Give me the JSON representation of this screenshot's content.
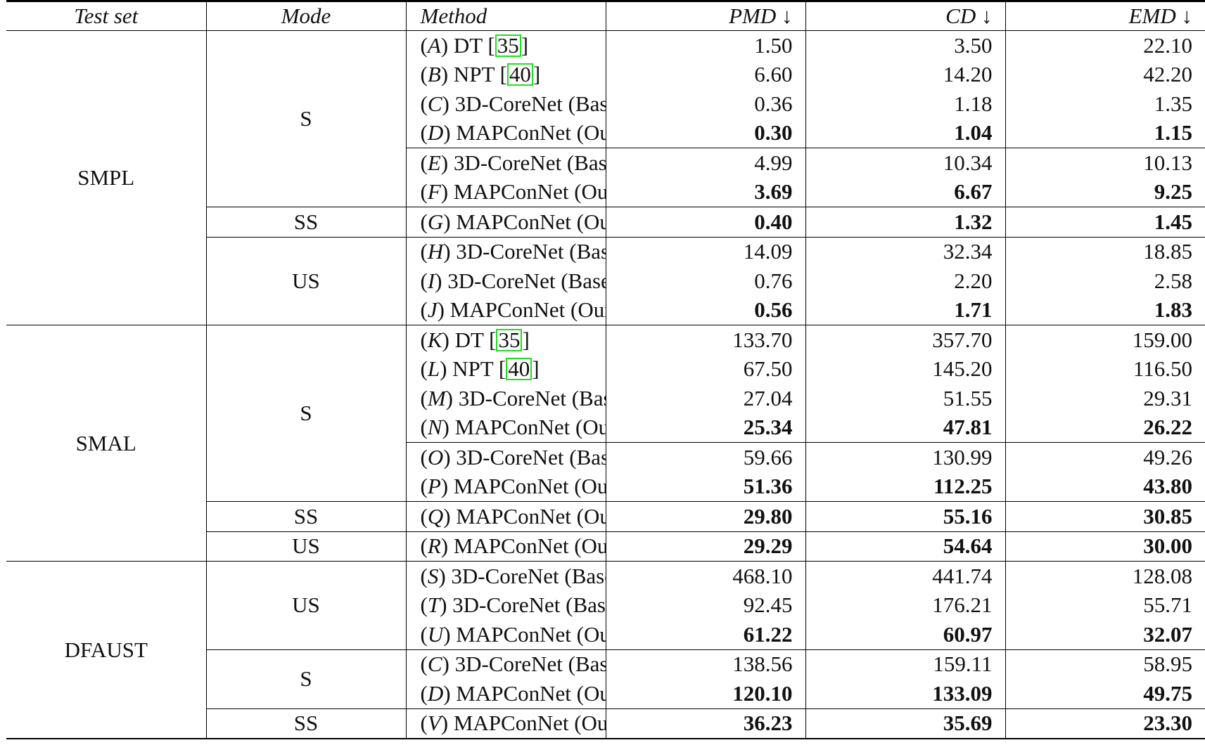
{
  "table": {
    "header": [
      "Test set",
      "Mode",
      "Method",
      "PMD ↓",
      "CD ↓",
      "EMD ↓"
    ],
    "groups": [
      {
        "test_set": "SMPL",
        "modes": [
          {
            "mode": "S",
            "blocks": [
              [
                {
                  "method": [
                    {
                      "text": "("
                    },
                    {
                      "text": "A",
                      "style": "italic"
                    },
                    {
                      "text": ") DT ["
                    },
                    {
                      "text": "35",
                      "style": "cite"
                    },
                    {
                      "text": "]"
                    }
                  ],
                  "pmd": "1.50",
                  "cd": "3.50",
                  "emd": "22.10"
                },
                {
                  "method": [
                    {
                      "text": "("
                    },
                    {
                      "text": "B",
                      "style": "italic"
                    },
                    {
                      "text": ") NPT ["
                    },
                    {
                      "text": "40",
                      "style": "cite"
                    },
                    {
                      "text": "]"
                    }
                  ],
                  "pmd": "6.60",
                  "cd": "14.20",
                  "emd": "42.20"
                },
                {
                  "method": [
                    {
                      "text": "("
                    },
                    {
                      "text": "C",
                      "style": "italic"
                    },
                    {
                      "text": ") 3D-CoreNet (Baseline) ["
                    },
                    {
                      "text": "33",
                      "style": "cite"
                    },
                    {
                      "text": "]"
                    }
                  ],
                  "pmd": "0.36",
                  "cd": "1.18",
                  "emd": "1.35"
                },
                {
                  "method": [
                    {
                      "text": "("
                    },
                    {
                      "text": "D",
                      "style": "italic"
                    },
                    {
                      "text": ") MAPConNet (Ours)"
                    }
                  ],
                  "pmd": "0.30",
                  "cd": "1.04",
                  "emd": "1.15",
                  "bold": true
                }
              ],
              [
                {
                  "method": [
                    {
                      "text": "("
                    },
                    {
                      "text": "E",
                      "style": "italic"
                    },
                    {
                      "text": ") 3D-CoreNet (Baseline) ["
                    },
                    {
                      "text": "33",
                      "style": "cite"
                    },
                    {
                      "text": "], 50% labelled"
                    }
                  ],
                  "pmd": "4.99",
                  "cd": "10.34",
                  "emd": "10.13"
                },
                {
                  "method": [
                    {
                      "text": "("
                    },
                    {
                      "text": "F",
                      "style": "italic"
                    },
                    {
                      "text": ") MAPConNet (Ours), 50% labelled"
                    }
                  ],
                  "pmd": "3.69",
                  "cd": "6.67",
                  "emd": "9.25",
                  "bold": true
                }
              ]
            ]
          },
          {
            "mode": "SS",
            "blocks": [
              [
                {
                  "method": [
                    {
                      "text": "("
                    },
                    {
                      "text": "G",
                      "style": "italic"
                    },
                    {
                      "text": ") MAPConNet (Ours), 50% labelled + 50% unlabelled"
                    }
                  ],
                  "pmd": "0.40",
                  "cd": "1.32",
                  "emd": "1.45",
                  "bold": true
                }
              ]
            ]
          },
          {
            "mode": "US",
            "blocks": [
              [
                {
                  "method": [
                    {
                      "text": "("
                    },
                    {
                      "text": "H",
                      "style": "italic"
                    },
                    {
                      "text": ") 3D-CoreNet (Baseline) ["
                    },
                    {
                      "text": "33",
                      "style": "cite"
                    },
                    {
                      "text": "], without LD"
                    }
                  ],
                  "pmd": "14.09",
                  "cd": "32.34",
                  "emd": "18.85"
                },
                {
                  "method": [
                    {
                      "text": "("
                    },
                    {
                      "text": "I",
                      "style": "italic"
                    },
                    {
                      "text": ") 3D-CoreNet (Baseline) ["
                    },
                    {
                      "text": "33",
                      "style": "cite"
                    },
                    {
                      "text": "], with LD"
                    }
                  ],
                  "pmd": "0.76",
                  "cd": "2.20",
                  "emd": "2.58"
                },
                {
                  "method": [
                    {
                      "text": "("
                    },
                    {
                      "text": "J",
                      "style": "italic"
                    },
                    {
                      "text": ") MAPConNet (Ours)"
                    }
                  ],
                  "pmd": "0.56",
                  "cd": "1.71",
                  "emd": "1.83",
                  "bold": true
                }
              ]
            ]
          }
        ]
      },
      {
        "test_set": "SMAL",
        "modes": [
          {
            "mode": "S",
            "blocks": [
              [
                {
                  "method": [
                    {
                      "text": "("
                    },
                    {
                      "text": "K",
                      "style": "italic"
                    },
                    {
                      "text": ") DT ["
                    },
                    {
                      "text": "35",
                      "style": "cite"
                    },
                    {
                      "text": "]"
                    }
                  ],
                  "pmd": "133.70",
                  "cd": "357.70",
                  "emd": "159.00"
                },
                {
                  "method": [
                    {
                      "text": "("
                    },
                    {
                      "text": "L",
                      "style": "italic"
                    },
                    {
                      "text": ") NPT ["
                    },
                    {
                      "text": "40",
                      "style": "cite"
                    },
                    {
                      "text": "]"
                    }
                  ],
                  "pmd": "67.50",
                  "cd": "145.20",
                  "emd": "116.50"
                },
                {
                  "method": [
                    {
                      "text": "("
                    },
                    {
                      "text": "M",
                      "style": "italic"
                    },
                    {
                      "text": ") 3D-CoreNet (Baseline) ["
                    },
                    {
                      "text": "33",
                      "style": "cite"
                    },
                    {
                      "text": "]"
                    }
                  ],
                  "pmd": "27.04",
                  "cd": "51.55",
                  "emd": "29.31"
                },
                {
                  "method": [
                    {
                      "text": "("
                    },
                    {
                      "text": "N",
                      "style": "italic"
                    },
                    {
                      "text": ") MAPConNet (Ours)"
                    }
                  ],
                  "pmd": "25.34",
                  "cd": "47.81",
                  "emd": "26.22",
                  "bold": true
                }
              ],
              [
                {
                  "method": [
                    {
                      "text": "("
                    },
                    {
                      "text": "O",
                      "style": "italic"
                    },
                    {
                      "text": ") 3D-CoreNet (Baseline) ["
                    },
                    {
                      "text": "33",
                      "style": "cite"
                    },
                    {
                      "text": "], 50% labelled"
                    }
                  ],
                  "pmd": "59.66",
                  "cd": "130.99",
                  "emd": "49.26"
                },
                {
                  "method": [
                    {
                      "text": "("
                    },
                    {
                      "text": "P",
                      "style": "italic"
                    },
                    {
                      "text": ") MAPConNet (Ours), 50% labelled"
                    }
                  ],
                  "pmd": "51.36",
                  "cd": "112.25",
                  "emd": "43.80",
                  "bold": true
                }
              ]
            ]
          },
          {
            "mode": "SS",
            "blocks": [
              [
                {
                  "method": [
                    {
                      "text": "("
                    },
                    {
                      "text": "Q",
                      "style": "italic"
                    },
                    {
                      "text": ") MAPConNet (Ours), 50% labelled + 50% unlabelled"
                    }
                  ],
                  "pmd": "29.80",
                  "cd": "55.16",
                  "emd": "30.85",
                  "bold": true
                }
              ]
            ]
          },
          {
            "mode": "US",
            "blocks": [
              [
                {
                  "method": [
                    {
                      "text": "("
                    },
                    {
                      "text": "R",
                      "style": "italic"
                    },
                    {
                      "text": ") MAPConNet (Ours)"
                    }
                  ],
                  "pmd": "29.29",
                  "cd": "54.64",
                  "emd": "30.00",
                  "bold": true
                }
              ]
            ]
          }
        ]
      },
      {
        "test_set": "DFAUST",
        "modes": [
          {
            "mode": "US",
            "blocks": [
              [
                {
                  "method": [
                    {
                      "text": "("
                    },
                    {
                      "text": "S",
                      "style": "italic"
                    },
                    {
                      "text": ") 3D-CoreNet (Baseline) ["
                    },
                    {
                      "text": "33",
                      "style": "cite"
                    },
                    {
                      "text": "], without LD"
                    }
                  ],
                  "pmd": "468.10",
                  "cd": "441.74",
                  "emd": "128.08"
                },
                {
                  "method": [
                    {
                      "text": "("
                    },
                    {
                      "text": "T",
                      "style": "italic"
                    },
                    {
                      "text": ") 3D-CoreNet (Baseline) ["
                    },
                    {
                      "text": "33",
                      "style": "cite"
                    },
                    {
                      "text": "], with LD"
                    }
                  ],
                  "pmd": "92.45",
                  "cd": "176.21",
                  "emd": "55.71"
                },
                {
                  "method": [
                    {
                      "text": "("
                    },
                    {
                      "text": "U",
                      "style": "italic"
                    },
                    {
                      "text": ") MAPConNet (Ours)"
                    }
                  ],
                  "pmd": "61.22",
                  "cd": "60.97",
                  "emd": "32.07",
                  "bold": true
                }
              ]
            ]
          },
          {
            "mode": "S",
            "blocks": [
              [
                {
                  "method": [
                    {
                      "text": "("
                    },
                    {
                      "text": "C",
                      "style": "italic"
                    },
                    {
                      "text": ") 3D-CoreNet (Baseline) ["
                    },
                    {
                      "text": "33",
                      "style": "cite"
                    },
                    {
                      "text": "], trained on SMPL only"
                    }
                  ],
                  "pmd": "138.56",
                  "cd": "159.11",
                  "emd": "58.95"
                },
                {
                  "method": [
                    {
                      "text": "("
                    },
                    {
                      "text": "D",
                      "style": "italic"
                    },
                    {
                      "text": ") MAPConNet (Ours), trained on SMPL only"
                    }
                  ],
                  "pmd": "120.10",
                  "cd": "133.09",
                  "emd": "49.75",
                  "bold": true
                }
              ]
            ]
          },
          {
            "mode": "SS",
            "blocks": [
              [
                {
                  "method": [
                    {
                      "text": "("
                    },
                    {
                      "text": "V",
                      "style": "italic"
                    },
                    {
                      "text": ") MAPConNet (Ours), SMPL labelled + DFAUST unlabelled"
                    }
                  ],
                  "pmd": "36.23",
                  "cd": "35.69",
                  "emd": "23.30",
                  "bold": true
                }
              ]
            ]
          }
        ]
      }
    ]
  }
}
